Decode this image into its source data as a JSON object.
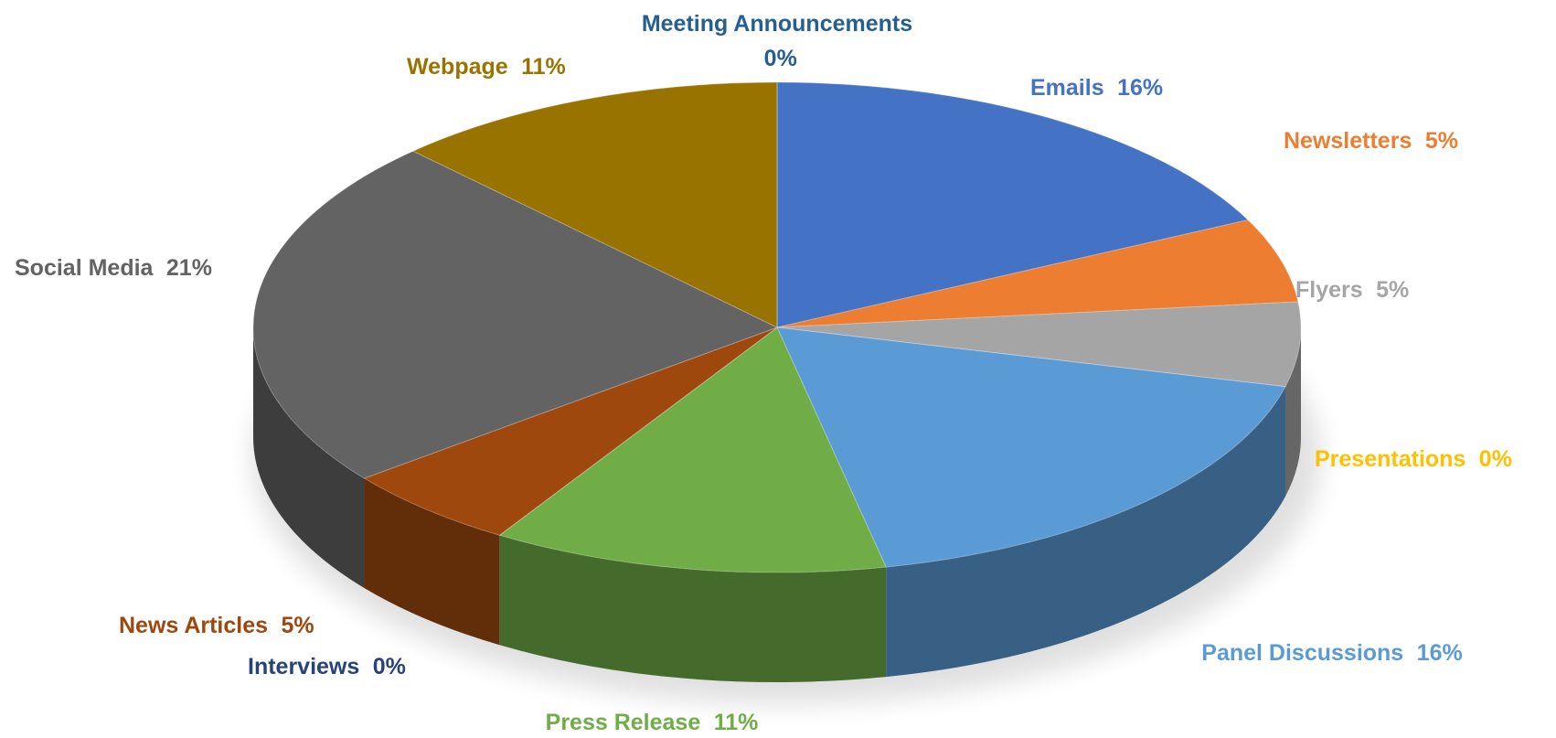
{
  "chart_data": {
    "type": "pie",
    "categories": [
      "Emails",
      "Newsletters",
      "Flyers",
      "Presentations",
      "Panel Discussions",
      "Press Release",
      "Interviews",
      "News Articles",
      "Social Media",
      "Webpage",
      "Meeting Announcements"
    ],
    "values": [
      16,
      5,
      5,
      0,
      16,
      11,
      0,
      5,
      21,
      11,
      0
    ],
    "value_labels": [
      "16%",
      "5%",
      "5%",
      "0%",
      "16%",
      "11%",
      "0%",
      "5%",
      "21%",
      "11%",
      "0%"
    ],
    "colors": [
      "#4472c4",
      "#ed7d31",
      "#a5a5a5",
      "#ffc000",
      "#5b9bd5",
      "#70ad47",
      "#264478",
      "#9e480e",
      "#636363",
      "#997300",
      "#255e91"
    ]
  }
}
